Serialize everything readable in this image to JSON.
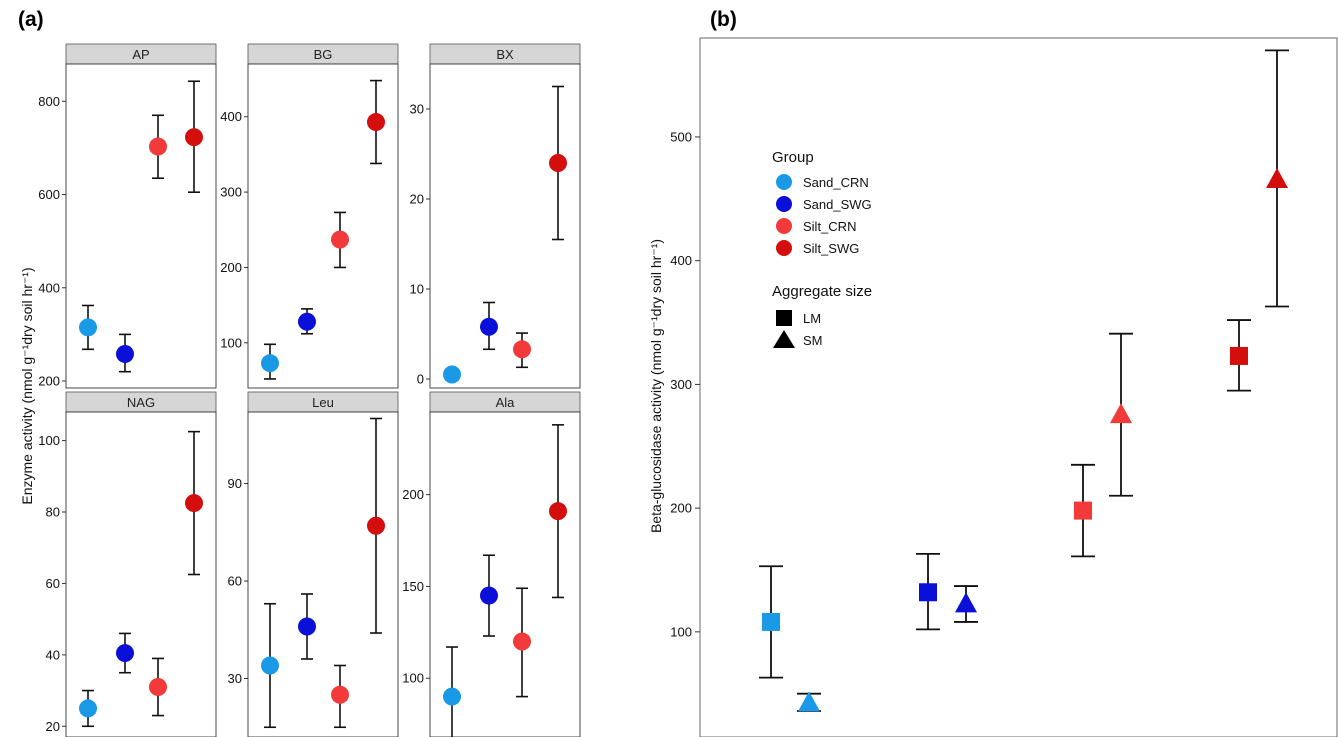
{
  "panel_a": {
    "letter": "(a)",
    "ylabel": "Enzyme activity (nmol g⁻¹dry soil hr⁻¹)"
  },
  "panel_b": {
    "letter": "(b)"
  },
  "colors": {
    "Sand_CRN": "#1a9ae6",
    "Sand_SWG": "#0a10d8",
    "Silt_CRN": "#f23a3a",
    "Silt_SWG": "#d40d0d",
    "strip_fill": "#d6d6d6"
  },
  "chart_data": [
    {
      "type": "scatter",
      "title": "",
      "xlabel": "",
      "ylabel": "Enzyme activity (nmol g⁻¹dry soil hr⁻¹)",
      "groups": [
        "Sand_CRN",
        "Sand_SWG",
        "Silt_CRN",
        "Silt_SWG"
      ],
      "facets": [
        {
          "name": "AP",
          "ylim": [
            185,
            880
          ],
          "ticks": [
            200,
            400,
            600,
            800
          ],
          "values": [
            315,
            258,
            703,
            723
          ],
          "lower": [
            268,
            220,
            635,
            605
          ],
          "upper": [
            362,
            300,
            770,
            843
          ]
        },
        {
          "name": "BG",
          "ylim": [
            40,
            470
          ],
          "ticks": [
            100,
            200,
            300,
            400
          ],
          "values": [
            73,
            128,
            237,
            393
          ],
          "lower": [
            52,
            112,
            200,
            338
          ],
          "upper": [
            98,
            145,
            273,
            448
          ]
        },
        {
          "name": "BX",
          "ylim": [
            -1,
            35
          ],
          "ticks": [
            0,
            10,
            20,
            30
          ],
          "values": [
            0.5,
            5.8,
            3.3,
            24
          ],
          "lower": [
            0.5,
            3.3,
            1.3,
            15.5
          ],
          "upper": [
            0.5,
            8.5,
            5.1,
            32.5
          ]
        },
        {
          "name": "NAG",
          "ylim": [
            17,
            108
          ],
          "ticks": [
            20,
            40,
            60,
            80,
            100
          ],
          "values": [
            25,
            40.5,
            31,
            82.5
          ],
          "lower": [
            20,
            35,
            23,
            62.5
          ],
          "upper": [
            30,
            46,
            39,
            102.5
          ]
        },
        {
          "name": "Leu",
          "ylim": [
            12,
            112
          ],
          "ticks": [
            30,
            60,
            90
          ],
          "values": [
            34,
            46,
            25,
            77
          ],
          "lower": [
            15,
            36,
            15,
            44
          ],
          "upper": [
            53,
            56,
            34,
            110
          ]
        },
        {
          "name": "Ala",
          "ylim": [
            68,
            245
          ],
          "ticks": [
            100,
            150,
            200
          ],
          "values": [
            90,
            145,
            120,
            191
          ],
          "lower": [
            63,
            123,
            90,
            144
          ],
          "upper": [
            117,
            167,
            149,
            238
          ]
        }
      ]
    },
    {
      "type": "scatter",
      "title": "",
      "xlabel": "",
      "ylabel": "Beta-glucosidase  activity (nmol g⁻¹dry soil hr⁻¹)",
      "ylim": [
        15,
        580
      ],
      "yticks": [
        100,
        200,
        300,
        400,
        500
      ],
      "legend_position": "top-left",
      "legend_group_title": "Group",
      "legend_shape_title": "Aggregate size",
      "groups": [
        "Sand_CRN",
        "Sand_SWG",
        "Silt_CRN",
        "Silt_SWG"
      ],
      "shapes": [
        "LM",
        "SM"
      ],
      "points": [
        {
          "group": "Sand_CRN",
          "size": "LM",
          "value": 108,
          "lower": 63,
          "upper": 153
        },
        {
          "group": "Sand_CRN",
          "size": "SM",
          "value": 43,
          "lower": 36,
          "upper": 50
        },
        {
          "group": "Sand_SWG",
          "size": "LM",
          "value": 132,
          "lower": 102,
          "upper": 163
        },
        {
          "group": "Sand_SWG",
          "size": "SM",
          "value": 123,
          "lower": 108,
          "upper": 137
        },
        {
          "group": "Silt_CRN",
          "size": "LM",
          "value": 198,
          "lower": 161,
          "upper": 235
        },
        {
          "group": "Silt_CRN",
          "size": "SM",
          "value": 276,
          "lower": 210,
          "upper": 341
        },
        {
          "group": "Silt_SWG",
          "size": "LM",
          "value": 323,
          "lower": 295,
          "upper": 352
        },
        {
          "group": "Silt_SWG",
          "size": "SM",
          "value": 466,
          "lower": 363,
          "upper": 570
        }
      ]
    }
  ]
}
